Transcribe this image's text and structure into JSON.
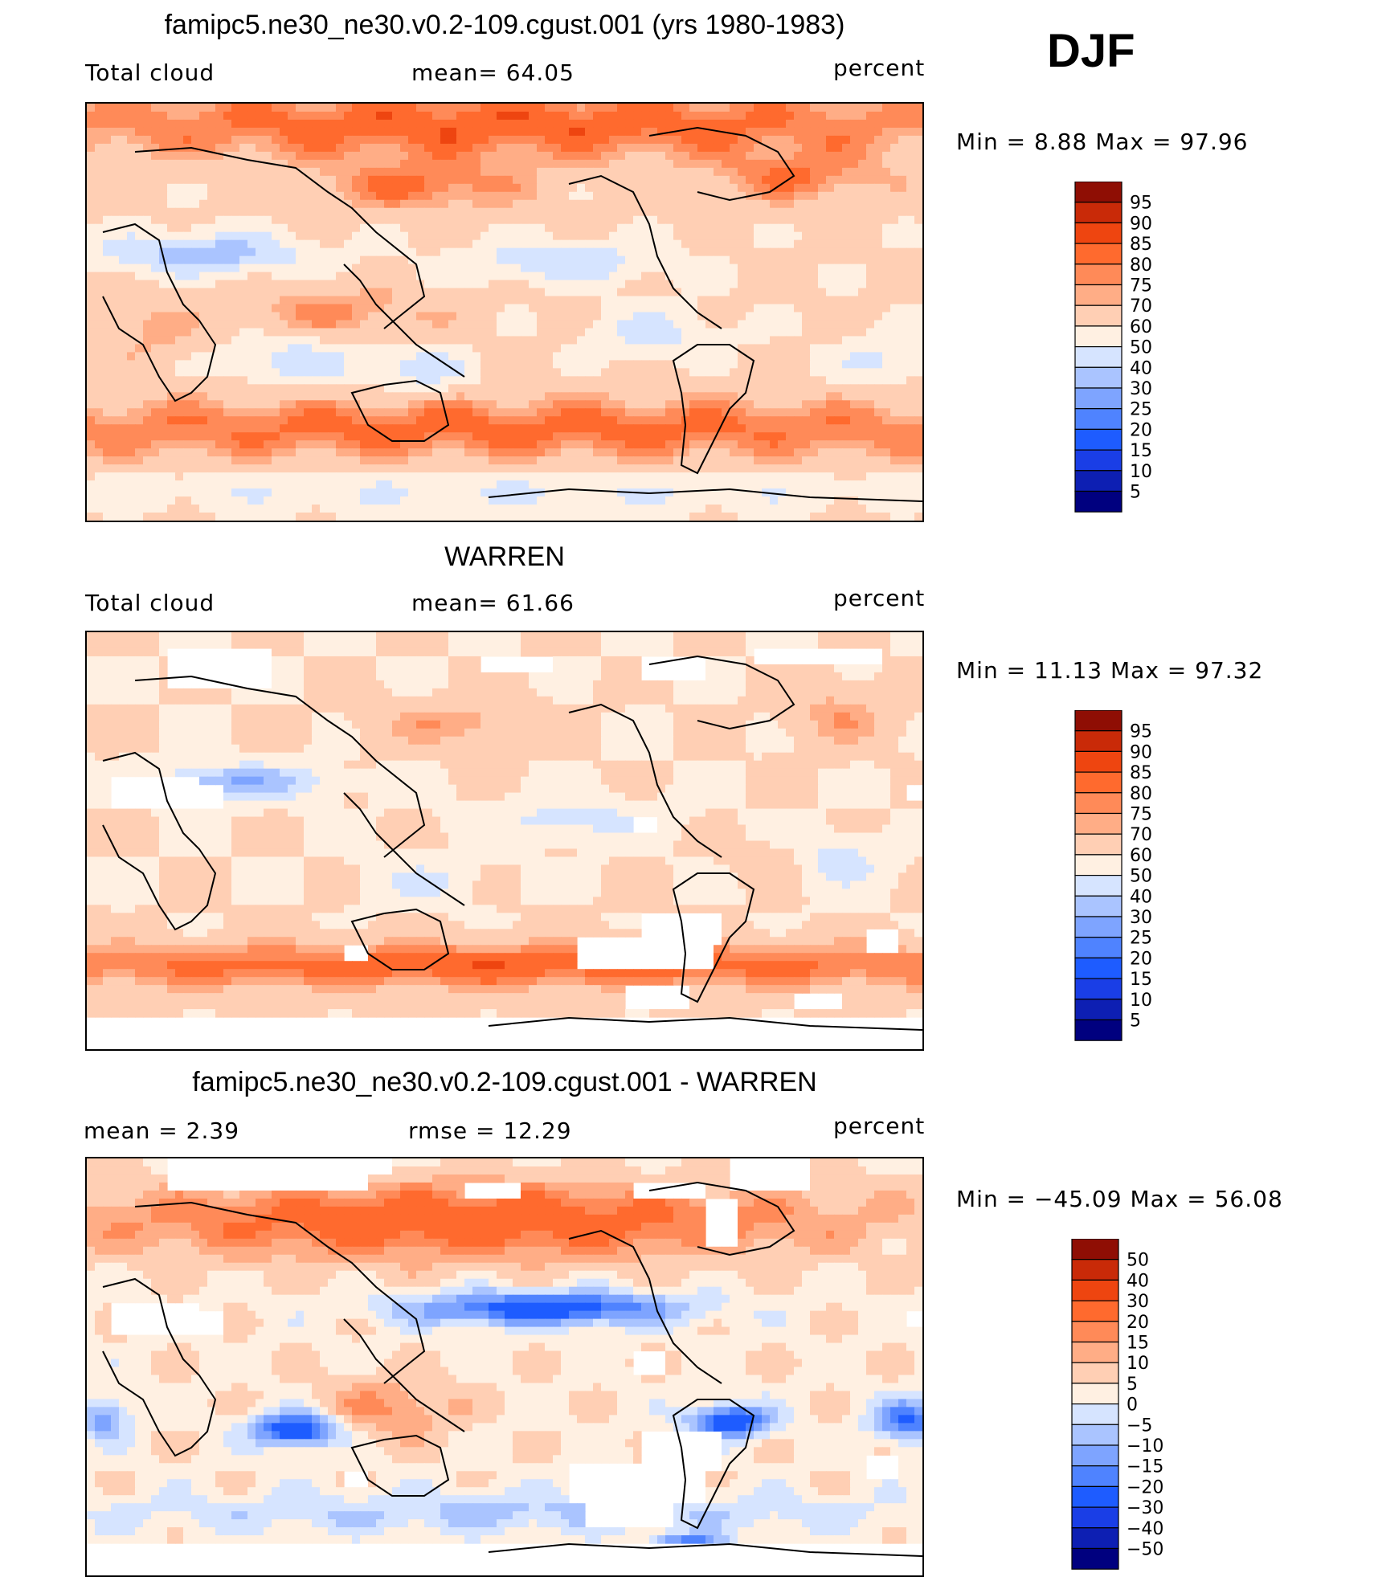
{
  "season": "DJF",
  "colors": {
    "abs_scale": [
      "#00007f",
      "#0d1fb3",
      "#1a3ee6",
      "#1e5cff",
      "#4f83ff",
      "#7ea4ff",
      "#aac4ff",
      "#d6e4ff",
      "#fff0e2",
      "#ffcfb4",
      "#ffad86",
      "#ff8a58",
      "#ff6a2e",
      "#ee4510",
      "#c92a08",
      "#8f0e04"
    ],
    "diff_scale": [
      "#00007f",
      "#0d1fb3",
      "#1a3ee6",
      "#1e5cff",
      "#4f83ff",
      "#7ea4ff",
      "#aac4ff",
      "#d6e4ff",
      "#fff0e2",
      "#ffcfb4",
      "#ffad86",
      "#ff8a58",
      "#ff6a2e",
      "#ee4510",
      "#c92a08",
      "#8f0e04"
    ]
  },
  "panels": [
    {
      "title": "famipc5.ne30_ne30.v0.2-109.cgust.001 (yrs 1980-1983)",
      "left_label": "Total cloud",
      "center_label": "mean=   64.05",
      "units": "percent",
      "minmax": "Min =    8.88  Max =   97.96",
      "colorbar_labels": [
        "95",
        "90",
        "85",
        "80",
        "75",
        "70",
        "60",
        "50",
        "40",
        "30",
        "25",
        "20",
        "15",
        "10",
        "5"
      ]
    },
    {
      "title": "WARREN",
      "left_label": "Total cloud",
      "center_label": "mean=   61.66",
      "units": "percent",
      "minmax": "Min =   11.13  Max =   97.32",
      "colorbar_labels": [
        "95",
        "90",
        "85",
        "80",
        "75",
        "70",
        "60",
        "50",
        "40",
        "30",
        "25",
        "20",
        "15",
        "10",
        "5"
      ]
    },
    {
      "title": "famipc5.ne30_ne30.v0.2-109.cgust.001 - WARREN",
      "left_label": "mean =    2.39",
      "center_label": "rmse =   12.29",
      "units": "percent",
      "minmax": "Min = −45.09  Max =   56.08",
      "colorbar_labels": [
        "50",
        "40",
        "30",
        "20",
        "15",
        "10",
        "5",
        "0",
        "−5",
        "−10",
        "−15",
        "−20",
        "−30",
        "−40",
        "−50"
      ]
    }
  ],
  "chart_data": [
    {
      "type": "heatmap",
      "title": "famipc5.ne30_ne30.v0.2-109.cgust.001 (yrs 1980-1983)",
      "variable": "Total cloud",
      "units": "percent",
      "season": "DJF",
      "mean": 64.05,
      "min": 8.88,
      "max": 97.96,
      "x_range": [
        0,
        360
      ],
      "y_range": [
        -90,
        90
      ],
      "levels": [
        5,
        10,
        15,
        20,
        25,
        30,
        40,
        50,
        60,
        70,
        75,
        80,
        85,
        90,
        95
      ]
    },
    {
      "type": "heatmap",
      "title": "WARREN",
      "variable": "Total cloud",
      "units": "percent",
      "season": "DJF",
      "mean": 61.66,
      "min": 11.13,
      "max": 97.32,
      "x_range": [
        0,
        360
      ],
      "y_range": [
        -90,
        90
      ],
      "levels": [
        5,
        10,
        15,
        20,
        25,
        30,
        40,
        50,
        60,
        70,
        75,
        80,
        85,
        90,
        95
      ]
    },
    {
      "type": "heatmap",
      "title": "famipc5.ne30_ne30.v0.2-109.cgust.001 - WARREN",
      "units": "percent",
      "season": "DJF",
      "mean": 2.39,
      "rmse": 12.29,
      "min": -45.09,
      "max": 56.08,
      "x_range": [
        0,
        360
      ],
      "y_range": [
        -90,
        90
      ],
      "levels": [
        -50,
        -40,
        -30,
        -20,
        -15,
        -10,
        -5,
        0,
        5,
        10,
        15,
        20,
        30,
        40,
        50
      ]
    }
  ]
}
